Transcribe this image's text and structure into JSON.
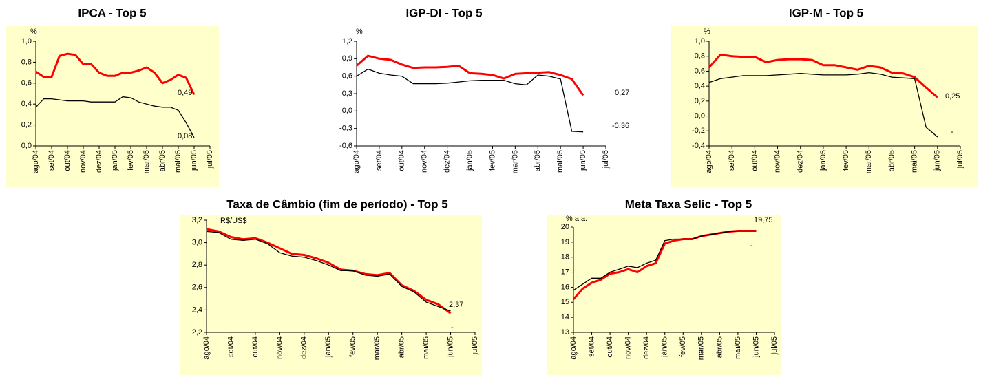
{
  "chart_data": [
    {
      "type": "line",
      "title": "IPCA - Top 5",
      "y_label": "%",
      "panel_color": "#ffffcc",
      "x": [
        0,
        0.5,
        1,
        1.5,
        2,
        2.5,
        3,
        3.5,
        4,
        4.5,
        5,
        5.5,
        6,
        6.5,
        7,
        7.5,
        8,
        8.5,
        9,
        9.5,
        10
      ],
      "xlim": [
        0,
        11
      ],
      "xticks": [
        {
          "value": 0,
          "label": "ago/04"
        },
        {
          "value": 1,
          "label": "set/04"
        },
        {
          "value": 2,
          "label": "out/04"
        },
        {
          "value": 3,
          "label": "nov/04"
        },
        {
          "value": 4,
          "label": "dez/04"
        },
        {
          "value": 5,
          "label": "jan/05"
        },
        {
          "value": 6,
          "label": "fev/05"
        },
        {
          "value": 7,
          "label": "mar/05"
        },
        {
          "value": 8,
          "label": "abr/05"
        },
        {
          "value": 9,
          "label": "mai/05"
        },
        {
          "value": 10,
          "label": "jun/05"
        },
        {
          "value": 11,
          "label": "jul/05"
        }
      ],
      "ylim": [
        0,
        1
      ],
      "yticks": [
        {
          "value": 0,
          "label": "0,0"
        },
        {
          "value": 0.2,
          "label": "0,2"
        },
        {
          "value": 0.4,
          "label": "0,4"
        },
        {
          "value": 0.6,
          "label": "0,6"
        },
        {
          "value": 0.8,
          "label": "0,8"
        },
        {
          "value": 1,
          "label": "1,0"
        }
      ],
      "series": [
        {
          "color": "#ff0000",
          "values": [
            0.71,
            0.66,
            0.66,
            0.86,
            0.88,
            0.87,
            0.78,
            0.78,
            0.7,
            0.67,
            0.67,
            0.7,
            0.7,
            0.72,
            0.75,
            0.7,
            0.6,
            0.63,
            0.68,
            0.65,
            0.49
          ]
        },
        {
          "color": "#000000",
          "values": [
            0.37,
            0.45,
            0.45,
            0.44,
            0.43,
            0.43,
            0.43,
            0.42,
            0.42,
            0.42,
            0.42,
            0.47,
            0.46,
            0.42,
            0.4,
            0.38,
            0.37,
            0.37,
            0.34,
            0.22,
            0.08
          ]
        }
      ],
      "annotations": [
        "0,49",
        "0,08"
      ]
    },
    {
      "type": "line",
      "title": "IGP-DI - Top 5",
      "y_label": "%",
      "panel_color": "#ffffff",
      "x": [
        0,
        0.5,
        1,
        1.5,
        2,
        2.5,
        3,
        3.5,
        4,
        4.5,
        5,
        5.5,
        6,
        6.5,
        7,
        7.5,
        8,
        8.5,
        9,
        9.5,
        10
      ],
      "xlim": [
        0,
        11
      ],
      "xticks": [
        {
          "value": 0,
          "label": "ago/04"
        },
        {
          "value": 1,
          "label": "set/04"
        },
        {
          "value": 2,
          "label": "out/04"
        },
        {
          "value": 3,
          "label": "nov/04"
        },
        {
          "value": 4,
          "label": "dez/04"
        },
        {
          "value": 5,
          "label": "jan/05"
        },
        {
          "value": 6,
          "label": "fev/05"
        },
        {
          "value": 7,
          "label": "mar/05"
        },
        {
          "value": 8,
          "label": "abr/05"
        },
        {
          "value": 9,
          "label": "mai/05"
        },
        {
          "value": 10,
          "label": "jun/05"
        },
        {
          "value": 11,
          "label": "jul/05"
        }
      ],
      "ylim": [
        -0.6,
        1.2
      ],
      "yticks": [
        {
          "value": -0.6,
          "label": "-0,6"
        },
        {
          "value": -0.3,
          "label": "-0,3"
        },
        {
          "value": 0,
          "label": "0,0"
        },
        {
          "value": 0.3,
          "label": "0,3"
        },
        {
          "value": 0.6,
          "label": "0,6"
        },
        {
          "value": 0.9,
          "label": "0,9"
        },
        {
          "value": 1.2,
          "label": "1,2"
        }
      ],
      "series": [
        {
          "color": "#ff0000",
          "values": [
            0.78,
            0.95,
            0.9,
            0.88,
            0.8,
            0.74,
            0.75,
            0.75,
            0.76,
            0.78,
            0.65,
            0.64,
            0.62,
            0.56,
            0.64,
            0.65,
            0.66,
            0.67,
            0.62,
            0.55,
            0.27
          ]
        },
        {
          "color": "#000000",
          "values": [
            0.6,
            0.72,
            0.65,
            0.62,
            0.6,
            0.47,
            0.47,
            0.47,
            0.48,
            0.5,
            0.52,
            0.53,
            0.53,
            0.53,
            0.47,
            0.45,
            0.62,
            0.6,
            0.55,
            -0.35,
            -0.36
          ]
        }
      ],
      "annotations": [
        "0,27",
        "-0,36"
      ]
    },
    {
      "type": "line",
      "title": "IGP-M - Top 5",
      "y_label": "%",
      "panel_color": "#ffffcc",
      "x": [
        0,
        0.5,
        1,
        1.5,
        2,
        2.5,
        3,
        3.5,
        4,
        4.5,
        5,
        5.5,
        6,
        6.5,
        7,
        7.5,
        8,
        8.5,
        9,
        9.5,
        10
      ],
      "xlim": [
        0,
        11
      ],
      "xticks": [
        {
          "value": 0,
          "label": "ago/04"
        },
        {
          "value": 1,
          "label": "set/04"
        },
        {
          "value": 2,
          "label": "out/04"
        },
        {
          "value": 3,
          "label": "nov/04"
        },
        {
          "value": 4,
          "label": "dez/04"
        },
        {
          "value": 5,
          "label": "jan/05"
        },
        {
          "value": 6,
          "label": "fev/05"
        },
        {
          "value": 7,
          "label": "mar/05"
        },
        {
          "value": 8,
          "label": "abr/05"
        },
        {
          "value": 9,
          "label": "mai/05"
        },
        {
          "value": 10,
          "label": "jun/05"
        },
        {
          "value": 11,
          "label": "jul/05"
        }
      ],
      "ylim": [
        -0.4,
        1
      ],
      "yticks": [
        {
          "value": -0.4,
          "label": "-0,4"
        },
        {
          "value": -0.2,
          "label": "-0,2"
        },
        {
          "value": 0,
          "label": "0,0"
        },
        {
          "value": 0.2,
          "label": "0,2"
        },
        {
          "value": 0.4,
          "label": "0,4"
        },
        {
          "value": 0.6,
          "label": "0,6"
        },
        {
          "value": 0.8,
          "label": "0,8"
        },
        {
          "value": 1,
          "label": "1,0"
        }
      ],
      "series": [
        {
          "color": "#ff0000",
          "values": [
            0.65,
            0.82,
            0.8,
            0.79,
            0.79,
            0.72,
            0.75,
            0.76,
            0.76,
            0.75,
            0.68,
            0.68,
            0.65,
            0.62,
            0.67,
            0.65,
            0.58,
            0.57,
            0.52,
            0.38,
            0.25
          ]
        },
        {
          "color": "#000000",
          "values": [
            0.45,
            0.5,
            0.52,
            0.54,
            0.54,
            0.54,
            0.55,
            0.56,
            0.57,
            0.56,
            0.55,
            0.55,
            0.55,
            0.56,
            0.58,
            0.56,
            0.52,
            0.51,
            0.5,
            -0.15,
            -0.28
          ]
        }
      ],
      "annotations": [
        "0,25",
        "-"
      ]
    },
    {
      "type": "line",
      "title": "Taxa de Câmbio (fim de período) - Top 5",
      "y_label": "R$/US$",
      "panel_color": "#ffffcc",
      "x": [
        0,
        0.5,
        1,
        1.5,
        2,
        2.5,
        3,
        3.5,
        4,
        4.5,
        5,
        5.5,
        6,
        6.5,
        7,
        7.5,
        8,
        8.5,
        9,
        9.5,
        10
      ],
      "xlim": [
        0,
        11
      ],
      "xticks": [
        {
          "value": 0,
          "label": "ago/04"
        },
        {
          "value": 1,
          "label": "set/04"
        },
        {
          "value": 2,
          "label": "out/04"
        },
        {
          "value": 3,
          "label": "nov/04"
        },
        {
          "value": 4,
          "label": "dez/04"
        },
        {
          "value": 5,
          "label": "jan/05"
        },
        {
          "value": 6,
          "label": "fev/05"
        },
        {
          "value": 7,
          "label": "mar/05"
        },
        {
          "value": 8,
          "label": "abr/05"
        },
        {
          "value": 9,
          "label": "mai/05"
        },
        {
          "value": 10,
          "label": "jun/05"
        },
        {
          "value": 11,
          "label": "jul/05"
        }
      ],
      "ylim": [
        2.2,
        3.2
      ],
      "yticks": [
        {
          "value": 2.2,
          "label": "2,2"
        },
        {
          "value": 2.4,
          "label": "2,4"
        },
        {
          "value": 2.6,
          "label": "2,6"
        },
        {
          "value": 2.8,
          "label": "2,8"
        },
        {
          "value": 3.0,
          "label": "3,0"
        },
        {
          "value": 3.2,
          "label": "3,2"
        }
      ],
      "series": [
        {
          "color": "#ff0000",
          "values": [
            3.12,
            3.1,
            3.05,
            3.03,
            3.04,
            3.0,
            2.95,
            2.9,
            2.89,
            2.86,
            2.82,
            2.76,
            2.75,
            2.72,
            2.71,
            2.73,
            2.62,
            2.57,
            2.49,
            2.45,
            2.37
          ]
        },
        {
          "color": "#000000",
          "values": [
            3.1,
            3.09,
            3.03,
            3.02,
            3.03,
            2.99,
            2.91,
            2.88,
            2.87,
            2.84,
            2.8,
            2.75,
            2.75,
            2.71,
            2.7,
            2.72,
            2.61,
            2.56,
            2.47,
            2.43,
            2.39
          ]
        }
      ],
      "annotations": [
        "2,37",
        "-"
      ]
    },
    {
      "type": "line",
      "title": "Meta Taxa Selic - Top 5",
      "y_label": "% a.a.",
      "panel_color": "#ffffcc",
      "x": [
        0,
        0.5,
        1,
        1.5,
        2,
        2.5,
        3,
        3.5,
        4,
        4.5,
        5,
        5.5,
        6,
        6.5,
        7,
        7.5,
        8,
        8.5,
        9,
        9.5,
        10
      ],
      "xlim": [
        0,
        11
      ],
      "xticks": [
        {
          "value": 0,
          "label": "ago/04"
        },
        {
          "value": 1,
          "label": "set/04"
        },
        {
          "value": 2,
          "label": "out/04"
        },
        {
          "value": 3,
          "label": "nov/04"
        },
        {
          "value": 4,
          "label": "dez/04"
        },
        {
          "value": 5,
          "label": "jan/05"
        },
        {
          "value": 6,
          "label": "fev/05"
        },
        {
          "value": 7,
          "label": "mar/05"
        },
        {
          "value": 8,
          "label": "abr/05"
        },
        {
          "value": 9,
          "label": "mai/05"
        },
        {
          "value": 10,
          "label": "jun/05"
        },
        {
          "value": 11,
          "label": "jul/05"
        }
      ],
      "ylim": [
        13,
        20
      ],
      "yticks": [
        13,
        14,
        15,
        16,
        17,
        18,
        19,
        20
      ],
      "series": [
        {
          "color": "#ff0000",
          "values": [
            15.2,
            15.9,
            16.3,
            16.5,
            16.9,
            17.0,
            17.2,
            17.0,
            17.4,
            17.6,
            18.9,
            19.1,
            19.2,
            19.2,
            19.4,
            19.5,
            19.6,
            19.7,
            19.75,
            19.75,
            19.75
          ]
        },
        {
          "color": "#000000",
          "values": [
            15.8,
            16.2,
            16.6,
            16.6,
            17.0,
            17.2,
            17.4,
            17.3,
            17.6,
            17.8,
            19.1,
            19.2,
            19.2,
            19.2,
            19.4,
            19.5,
            19.6,
            19.7,
            19.75,
            19.75,
            19.75
          ]
        }
      ],
      "annotations": [
        "19,75",
        "-"
      ]
    }
  ]
}
